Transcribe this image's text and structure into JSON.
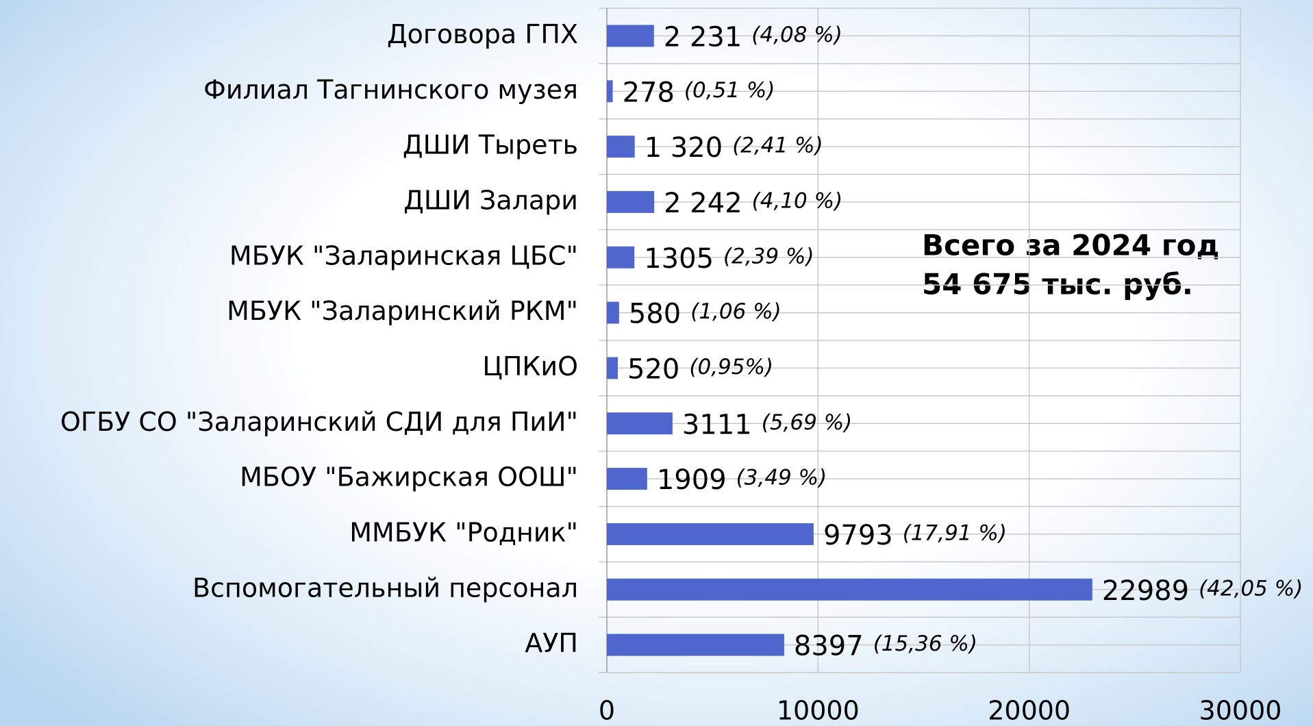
{
  "chart_data": {
    "type": "barh",
    "categories": [
      "Договора ГПХ",
      "Филиал Тагнинского музея",
      "ДШИ Тыреть",
      "ДШИ Залари",
      "МБУК \"Заларинская ЦБС\"",
      "МБУК \"Заларинский РКМ\"",
      "ЦПКиО",
      "ОГБУ СО \"Заларинский СДИ для ПиИ\"",
      "МБОУ \"Бажирская ООШ\"",
      "ММБУК \"Родник\"",
      "Вспомогательный персонал",
      "АУП"
    ],
    "values": [
      2231,
      278,
      1320,
      2242,
      1305,
      580,
      520,
      3111,
      1909,
      9793,
      22989,
      8397
    ],
    "value_labels": [
      "2 231",
      "278",
      "1 320",
      "2 242",
      "1305",
      "580",
      "520",
      "3111",
      "1909",
      "9793",
      "22989",
      "8397"
    ],
    "percent_labels": [
      "(4,08 %)",
      "(0,51 %)",
      "(2,41 %)",
      "(4,10 %)",
      "(2,39 %)",
      "(1,06 %)",
      "(0,95%)",
      "(5,69 %)",
      "(3,49 %)",
      "(17,91 %)",
      "(42,05 %)",
      "(15,36 %)"
    ],
    "color": "#4f66cc",
    "xlim": [
      0,
      30000
    ],
    "xticks": [
      0,
      10000,
      20000,
      30000
    ],
    "grid": true,
    "annotations": [
      "Всего за 2024 год",
      "54 675 тыс. руб."
    ]
  }
}
